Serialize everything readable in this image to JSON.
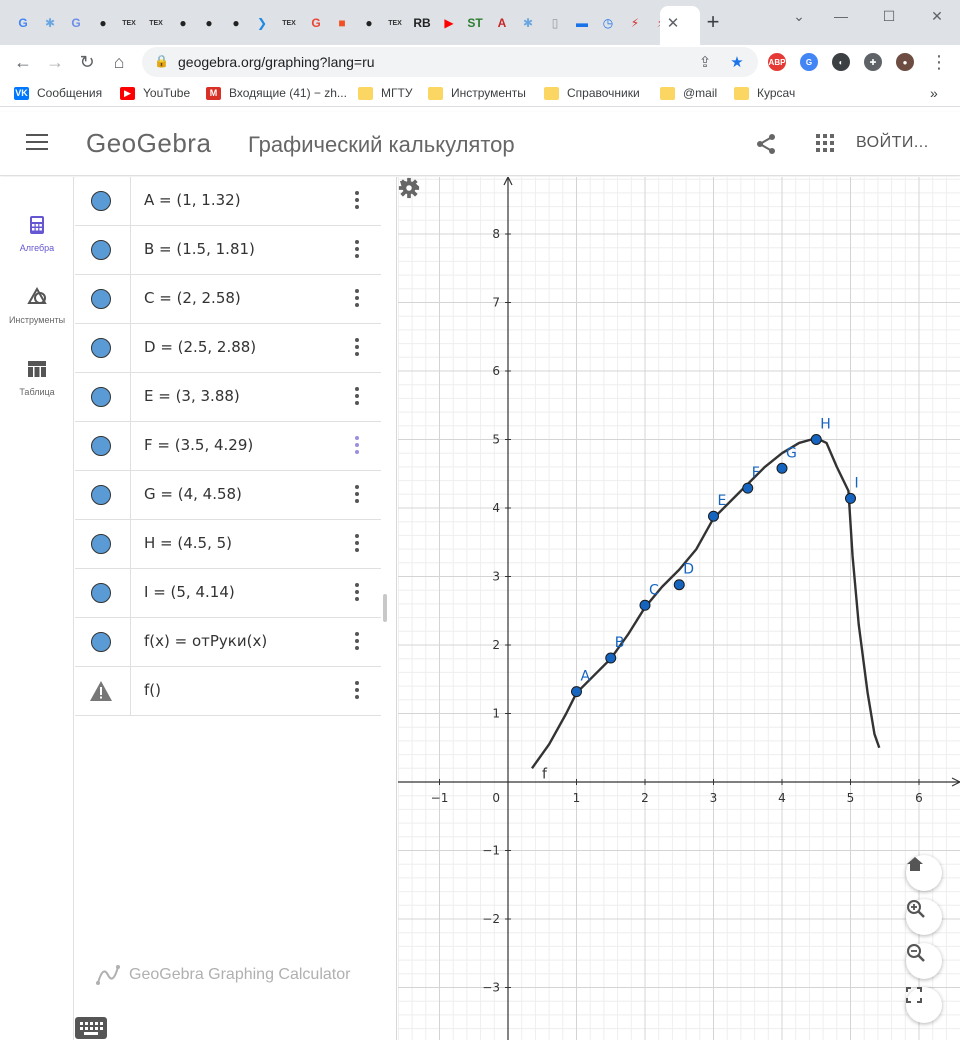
{
  "browser": {
    "tabs": [
      {
        "icon": "google-icon",
        "glyph": "G",
        "color": "#4285f4"
      },
      {
        "icon": "puzzle-tile-icon",
        "glyph": "✱",
        "color": "#6aa6e0"
      },
      {
        "icon": "translate-icon",
        "glyph": "G",
        "color": "#6d8ee8"
      },
      {
        "icon": "github-icon",
        "glyph": "●",
        "color": "#222"
      },
      {
        "icon": "tex-icon",
        "glyph": "TEX",
        "color": "#333"
      },
      {
        "icon": "tex-icon",
        "glyph": "TEX",
        "color": "#333"
      },
      {
        "icon": "github-icon",
        "glyph": "●",
        "color": "#222"
      },
      {
        "icon": "github-icon",
        "glyph": "●",
        "color": "#222"
      },
      {
        "icon": "github-icon",
        "glyph": "●",
        "color": "#222"
      },
      {
        "icon": "vscode-icon",
        "glyph": "❯",
        "color": "#1e88e5"
      },
      {
        "icon": "tex-icon",
        "glyph": "TEX",
        "color": "#333"
      },
      {
        "icon": "google-icon",
        "glyph": "G",
        "color": "#ea4335"
      },
      {
        "icon": "microsoft-icon",
        "glyph": "■",
        "color": "#f25022"
      },
      {
        "icon": "github-icon",
        "glyph": "●",
        "color": "#222"
      },
      {
        "icon": "tex-icon",
        "glyph": "TEX",
        "color": "#333"
      },
      {
        "icon": "rb-icon",
        "glyph": "RB",
        "color": "#222"
      },
      {
        "icon": "youtube-icon",
        "glyph": "▶",
        "color": "#ff0000"
      },
      {
        "icon": "sti-icon",
        "glyph": "ST",
        "color": "#2e7d32"
      },
      {
        "icon": "font-icon",
        "glyph": "A",
        "color": "#c62828"
      },
      {
        "icon": "puzzle-tile-icon",
        "glyph": "✱",
        "color": "#6aa6e0"
      },
      {
        "icon": "doc-icon",
        "glyph": "▯",
        "color": "#999"
      },
      {
        "icon": "chat-icon",
        "glyph": "▬",
        "color": "#1a73e8"
      },
      {
        "icon": "history-icon",
        "glyph": "◷",
        "color": "#1a73e8"
      },
      {
        "icon": "bolt-icon",
        "glyph": "⚡",
        "color": "#d32f2f"
      },
      {
        "icon": "bolt-icon",
        "glyph": "⚡",
        "color": "#d32f2f"
      }
    ],
    "url": "geogebra.org/graphing?lang=ru",
    "bookmarks": [
      {
        "label": "Сообщения",
        "icon": "vk-icon",
        "color": "#0077ff",
        "glyph": "VK"
      },
      {
        "label": "YouTube",
        "icon": "youtube-icon",
        "color": "#ff0000",
        "glyph": "▶"
      },
      {
        "label": "Входящие (41) - zh...",
        "icon": "gmail-icon",
        "color": "#d93025",
        "glyph": "M"
      },
      {
        "label": "МГТУ",
        "icon": "folder-icon",
        "color": "#fcd663",
        "glyph": ""
      },
      {
        "label": "Инструменты",
        "icon": "folder-icon",
        "color": "#fcd663",
        "glyph": ""
      },
      {
        "label": "Справочники",
        "icon": "folder-icon",
        "color": "#fcd663",
        "glyph": ""
      },
      {
        "label": "@mail",
        "icon": "folder-icon",
        "color": "#fcd663",
        "glyph": ""
      },
      {
        "label": "Курсач",
        "icon": "folder-icon",
        "color": "#fcd663",
        "glyph": ""
      }
    ],
    "extensions": [
      {
        "icon": "adblock-icon",
        "glyph": "ABP",
        "color": "#e53935"
      },
      {
        "icon": "translate-icon",
        "glyph": "G",
        "color": "#4285f4"
      },
      {
        "icon": "password-icon",
        "glyph": "◐",
        "color": "#3c4043"
      },
      {
        "icon": "extensions-icon",
        "glyph": "✚",
        "color": "#5f6368"
      },
      {
        "icon": "avatar-icon",
        "glyph": "●",
        "color": "#6d4c41"
      }
    ]
  },
  "app": {
    "logo": "GeoGebra",
    "title": "Графический калькулятор",
    "login_label": "ВОЙТИ...",
    "rail": [
      {
        "label": "Алгебра",
        "icon": "calculator-icon",
        "active": true
      },
      {
        "label": "Инструменты",
        "icon": "tools-icon",
        "active": false
      },
      {
        "label": "Таблица",
        "icon": "table-icon",
        "active": false
      }
    ],
    "algebra_rows": [
      {
        "expr": "A = (1, 1.32)",
        "type": "point"
      },
      {
        "expr": "B = (1.5, 1.81)",
        "type": "point"
      },
      {
        "expr": "C = (2, 2.58)",
        "type": "point"
      },
      {
        "expr": "D = (2.5, 2.88)",
        "type": "point"
      },
      {
        "expr": "E = (3, 3.88)",
        "type": "point"
      },
      {
        "expr": "F = (3.5, 4.29)",
        "type": "point"
      },
      {
        "expr": "G = (4, 4.58)",
        "type": "point"
      },
      {
        "expr": "H = (4.5, 5)",
        "type": "point"
      },
      {
        "expr": "I = (5, 4.14)",
        "type": "point"
      },
      {
        "expr": "f(x) = отРуки(x)",
        "type": "function"
      },
      {
        "expr": "f()",
        "type": "error"
      }
    ],
    "watermark": "GeoGebra Graphing Calculator",
    "colors": {
      "accent": "#6557d2",
      "point_fill": "#1565c0",
      "marble": "#5b9bd5"
    }
  },
  "graph": {
    "x_ticks": [
      -1,
      1,
      2,
      3,
      4,
      5,
      6
    ],
    "y_ticks": [
      -3,
      -2,
      -1,
      1,
      2,
      3,
      4,
      5,
      6,
      7,
      8
    ],
    "origin_label": "0",
    "points": [
      {
        "name": "A",
        "x": 1,
        "y": 1.32
      },
      {
        "name": "B",
        "x": 1.5,
        "y": 1.81
      },
      {
        "name": "C",
        "x": 2,
        "y": 2.58
      },
      {
        "name": "D",
        "x": 2.5,
        "y": 2.88
      },
      {
        "name": "E",
        "x": 3,
        "y": 3.88
      },
      {
        "name": "F",
        "x": 3.5,
        "y": 4.29
      },
      {
        "name": "G",
        "x": 4,
        "y": 4.58
      },
      {
        "name": "H",
        "x": 4.5,
        "y": 5
      },
      {
        "name": "I",
        "x": 5,
        "y": 4.14
      }
    ],
    "curve_label": "f",
    "curve": [
      [
        0.35,
        0.2
      ],
      [
        0.6,
        0.55
      ],
      [
        0.85,
        1.0
      ],
      [
        1.0,
        1.3
      ],
      [
        1.25,
        1.55
      ],
      [
        1.5,
        1.8
      ],
      [
        1.75,
        2.15
      ],
      [
        2.0,
        2.55
      ],
      [
        2.25,
        2.85
      ],
      [
        2.5,
        3.1
      ],
      [
        2.75,
        3.4
      ],
      [
        3.0,
        3.85
      ],
      [
        3.25,
        4.1
      ],
      [
        3.5,
        4.35
      ],
      [
        3.75,
        4.6
      ],
      [
        4.0,
        4.8
      ],
      [
        4.25,
        4.95
      ],
      [
        4.5,
        5.02
      ],
      [
        4.65,
        4.95
      ],
      [
        4.8,
        4.6
      ],
      [
        4.97,
        4.25
      ],
      [
        5.03,
        3.3
      ],
      [
        5.12,
        2.3
      ],
      [
        5.25,
        1.3
      ],
      [
        5.35,
        0.7
      ],
      [
        5.42,
        0.5
      ]
    ]
  }
}
